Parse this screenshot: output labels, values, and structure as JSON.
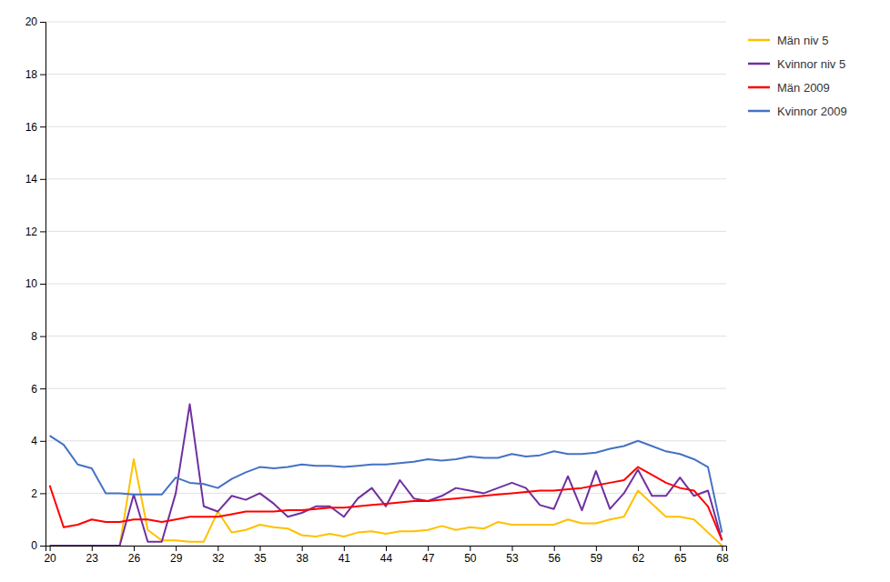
{
  "chart_data": {
    "type": "line",
    "x": [
      20,
      21,
      22,
      23,
      24,
      25,
      26,
      27,
      28,
      29,
      30,
      31,
      32,
      33,
      34,
      35,
      36,
      37,
      38,
      39,
      40,
      41,
      42,
      43,
      44,
      45,
      46,
      47,
      48,
      49,
      50,
      51,
      52,
      53,
      54,
      55,
      56,
      57,
      58,
      59,
      60,
      61,
      62,
      63,
      64,
      65,
      66,
      67,
      68
    ],
    "series": [
      {
        "name": "Män niv 5",
        "color": "#FFC000",
        "values": [
          0.0,
          0.0,
          0.0,
          0.0,
          0.0,
          0.0,
          3.3,
          0.6,
          0.2,
          0.2,
          0.15,
          0.15,
          1.3,
          0.5,
          0.6,
          0.8,
          0.7,
          0.65,
          0.4,
          0.35,
          0.45,
          0.35,
          0.5,
          0.55,
          0.45,
          0.55,
          0.55,
          0.6,
          0.75,
          0.6,
          0.7,
          0.65,
          0.9,
          0.8,
          0.8,
          0.8,
          0.8,
          1.0,
          0.85,
          0.85,
          1.0,
          1.1,
          2.1,
          1.6,
          1.1,
          1.1,
          1.0,
          0.5,
          0.0
        ]
      },
      {
        "name": "Kvinnor niv 5",
        "color": "#7030A0",
        "values": [
          0.0,
          0.0,
          0.0,
          0.0,
          0.0,
          0.0,
          1.95,
          0.15,
          0.15,
          2.0,
          5.4,
          1.5,
          1.3,
          1.9,
          1.75,
          2.0,
          1.6,
          1.1,
          1.25,
          1.5,
          1.5,
          1.1,
          1.8,
          2.2,
          1.5,
          2.5,
          1.8,
          1.7,
          1.9,
          2.2,
          2.1,
          2.0,
          2.2,
          2.4,
          2.2,
          1.55,
          1.4,
          2.65,
          1.35,
          2.85,
          1.4,
          2.0,
          2.9,
          1.9,
          1.9,
          2.6,
          1.9,
          2.1,
          0.2
        ]
      },
      {
        "name": "Män 2009",
        "color": "#FF0000",
        "values": [
          2.3,
          0.7,
          0.8,
          1.0,
          0.9,
          0.9,
          1.0,
          1.0,
          0.9,
          1.0,
          1.1,
          1.1,
          1.1,
          1.2,
          1.3,
          1.3,
          1.3,
          1.35,
          1.35,
          1.4,
          1.45,
          1.45,
          1.5,
          1.55,
          1.6,
          1.65,
          1.7,
          1.7,
          1.75,
          1.8,
          1.85,
          1.9,
          1.95,
          2.0,
          2.05,
          2.1,
          2.1,
          2.15,
          2.2,
          2.3,
          2.4,
          2.5,
          3.0,
          2.7,
          2.4,
          2.2,
          2.1,
          1.5,
          0.2
        ]
      },
      {
        "name": "Kvinnor 2009",
        "color": "#4472C4",
        "values": [
          4.2,
          3.85,
          3.1,
          2.95,
          2.0,
          2.0,
          1.95,
          1.95,
          1.95,
          2.6,
          2.4,
          2.35,
          2.2,
          2.55,
          2.8,
          3.0,
          2.95,
          3.0,
          3.1,
          3.05,
          3.05,
          3.0,
          3.05,
          3.1,
          3.1,
          3.15,
          3.2,
          3.3,
          3.25,
          3.3,
          3.4,
          3.35,
          3.35,
          3.5,
          3.4,
          3.45,
          3.6,
          3.5,
          3.5,
          3.55,
          3.7,
          3.8,
          4.0,
          3.8,
          3.6,
          3.5,
          3.3,
          3.0,
          0.5
        ]
      }
    ],
    "xlim": [
      19.7,
      68.3
    ],
    "xticks": [
      20,
      23,
      26,
      29,
      32,
      35,
      38,
      41,
      44,
      47,
      50,
      53,
      56,
      59,
      62,
      65,
      68
    ],
    "ylim": [
      0,
      20
    ],
    "yticks": [
      0,
      2,
      4,
      6,
      8,
      10,
      12,
      14,
      16,
      18,
      20
    ],
    "grid": "y",
    "legend": "right"
  }
}
